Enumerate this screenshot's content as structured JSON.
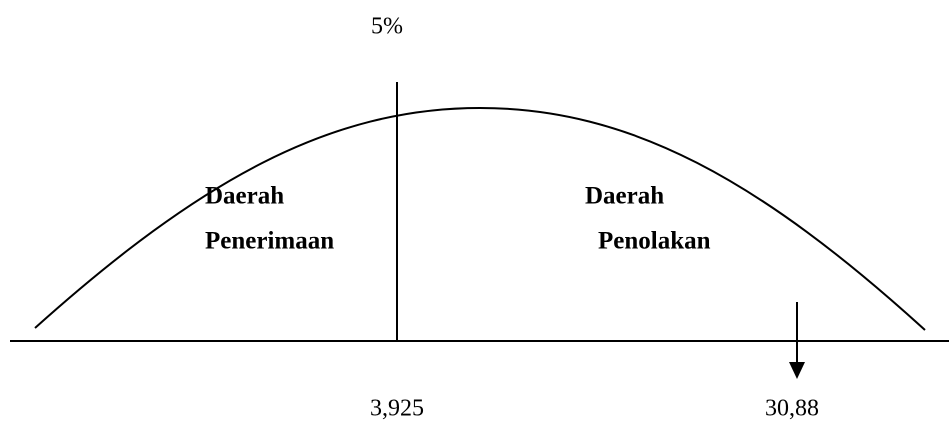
{
  "top_label": "5%",
  "regions": [
    {
      "line1": "Daerah",
      "line2": "Penerimaan"
    },
    {
      "line1": "Daerah",
      "line2": "Penolakan"
    }
  ],
  "axis_labels": [
    "3,925",
    "30,88"
  ]
}
